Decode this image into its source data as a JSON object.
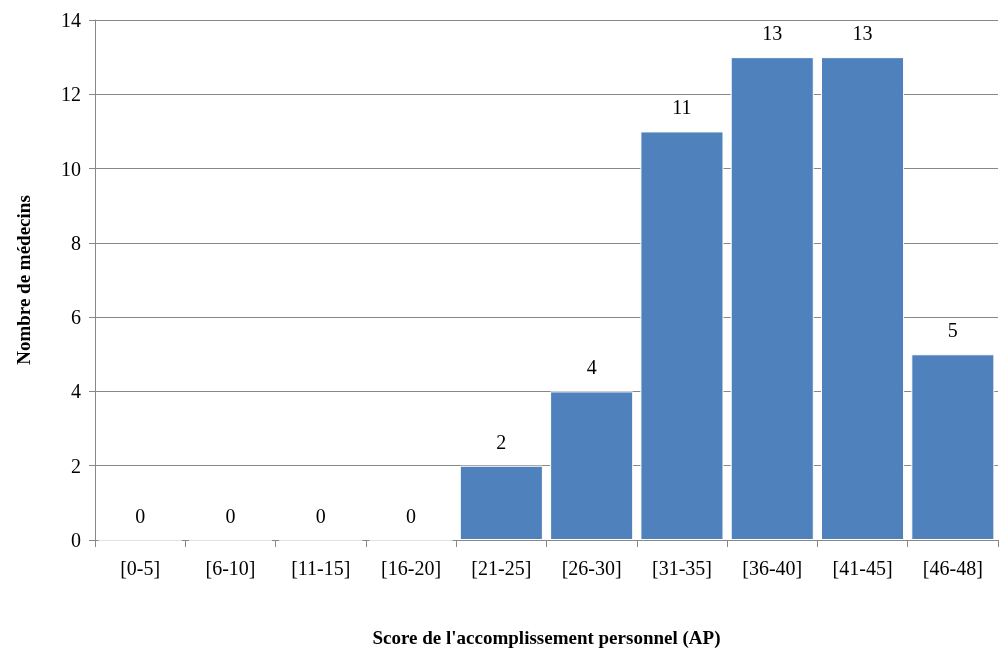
{
  "chart_data": {
    "type": "bar",
    "xlabel": "Score de l'accomplissement personnel (AP)",
    "ylabel": "Nombre de médecins",
    "categories": [
      "[0-5]",
      "[6-10]",
      "[11-15]",
      "[16-20]",
      "[21-25]",
      "[26-30]",
      "[31-35]",
      "[36-40]",
      "[41-45]",
      "[46-48]"
    ],
    "values": [
      0,
      0,
      0,
      0,
      2,
      4,
      11,
      13,
      13,
      5
    ],
    "color": "#4f81bd",
    "ylim": [
      0,
      14
    ],
    "yticks": [
      0,
      2,
      4,
      6,
      8,
      10,
      12,
      14
    ],
    "grid": "y",
    "data_labels": true
  }
}
